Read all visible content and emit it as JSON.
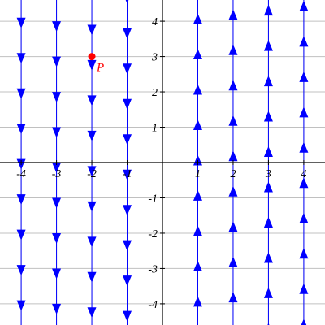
{
  "figure": {
    "type": "slope-field",
    "colors": {
      "background": "#ffffff",
      "grid": "#c0c0c0",
      "axis": "#000000",
      "field": "#0000ff",
      "point": "#ff0000"
    },
    "x_range": [
      -4.6,
      4.6
    ],
    "y_range": [
      -4.6,
      4.6
    ],
    "x_ticks": [
      {
        "value": -4,
        "label": "-4"
      },
      {
        "value": -3,
        "label": "-3"
      },
      {
        "value": -2,
        "label": "-2"
      },
      {
        "value": -1,
        "label": "-1"
      },
      {
        "value": 1,
        "label": "1"
      },
      {
        "value": 2,
        "label": "2"
      },
      {
        "value": 3,
        "label": "3"
      },
      {
        "value": 4,
        "label": "4"
      }
    ],
    "y_ticks": [
      {
        "value": 4,
        "label": "4"
      },
      {
        "value": 3,
        "label": "3"
      },
      {
        "value": 2,
        "label": "2"
      },
      {
        "value": 1,
        "label": "1"
      },
      {
        "value": -1,
        "label": "-1"
      },
      {
        "value": -2,
        "label": "-2"
      },
      {
        "value": -3,
        "label": "-3"
      },
      {
        "value": -4,
        "label": "-4"
      }
    ],
    "field_columns": [
      -4,
      -3,
      -2,
      -1,
      1,
      2,
      3,
      4
    ],
    "arrow_spacing": 1,
    "arrow_direction_rule": "up when x > 0, down when x < 0",
    "point": {
      "name": "P",
      "x": -2,
      "y": 3
    }
  }
}
